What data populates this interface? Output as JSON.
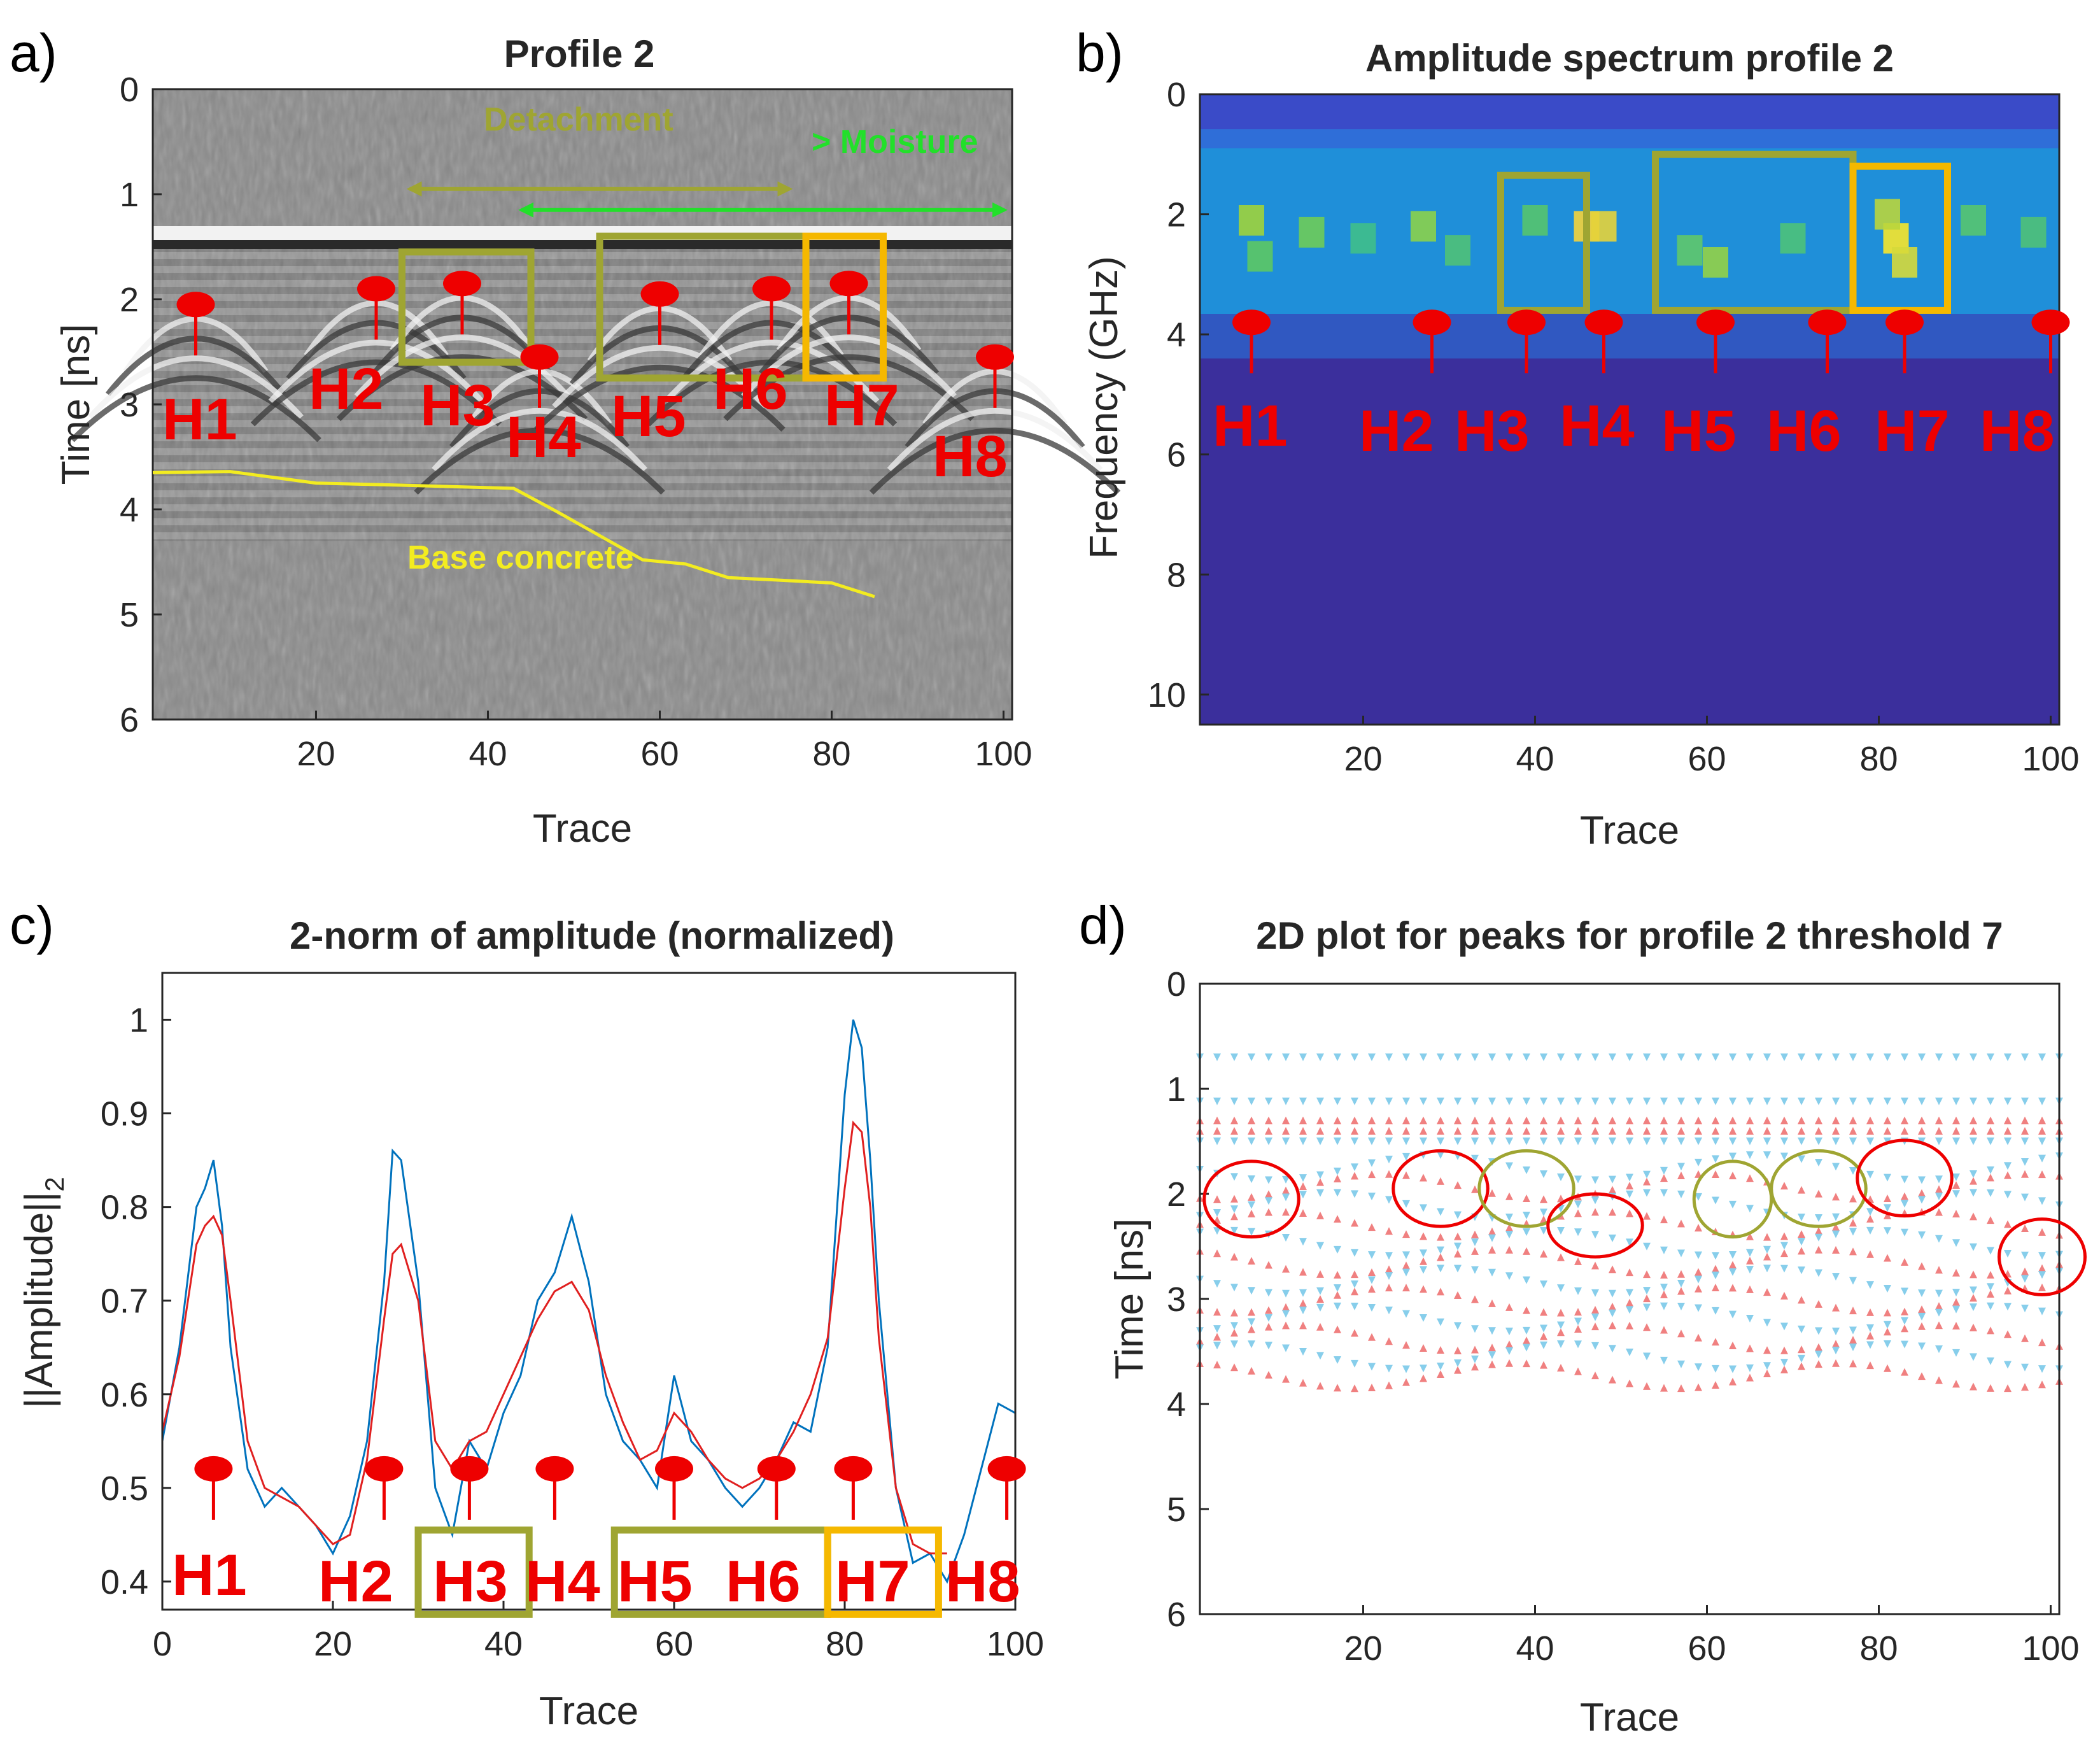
{
  "colors": {
    "marker_red": "#ee0000",
    "detachment_olive": "#9fa532",
    "moisture_orange": "#f5b800",
    "moisture_green": "#22e02a",
    "base_concrete_yellow": "#f3ec20",
    "series_blue": "#0072bd",
    "series_red": "#e02020",
    "peak_positive_blue": "#87ceeb",
    "peak_negative_red": "#f08080",
    "spectrum_background": "#3b2f9c"
  },
  "panels": {
    "a": {
      "label": "a)",
      "title": "Profile 2",
      "xlabel": "Trace",
      "ylabel": "Time [ns]"
    },
    "b": {
      "label": "b)",
      "title": "Amplitude spectrum profile 2",
      "xlabel": "Trace",
      "ylabel": "Frequency (GHz)"
    },
    "c": {
      "label": "c)",
      "title": "2-norm of amplitude (normalized)",
      "xlabel": "Trace",
      "ylabel": "||Amplitude||",
      "ylabel_subscript": "2"
    },
    "d": {
      "label": "d)",
      "title": "2D plot for peaks for profile 2 threshold 7",
      "xlabel": "Trace",
      "ylabel": "Time [ns]"
    }
  },
  "annotations": {
    "detachment": "Detachment",
    "moisture": "> Moisture",
    "base_concrete": "Base concrete"
  },
  "hyperbola_labels": [
    "H1",
    "H2",
    "H3",
    "H4",
    "H5",
    "H6",
    "H7",
    "H8"
  ],
  "chart_data": [
    {
      "panel": "a",
      "type": "heatmap",
      "title": "Profile 2",
      "xlabel": "Trace",
      "ylabel": "Time [ns]",
      "xlim": [
        1,
        101
      ],
      "ylim": [
        0,
        6
      ],
      "y_reversed": true,
      "xticks": [
        20,
        40,
        60,
        80,
        100
      ],
      "yticks": [
        0,
        1,
        2,
        3,
        4,
        5,
        6
      ],
      "colormap": "gray",
      "markers": [
        {
          "label": "H1",
          "x": 6,
          "t": 2.05
        },
        {
          "label": "H2",
          "x": 27,
          "t": 1.9
        },
        {
          "label": "H3",
          "x": 37,
          "t": 1.85
        },
        {
          "label": "H4",
          "x": 46,
          "t": 2.55
        },
        {
          "label": "H5",
          "x": 60,
          "t": 1.95
        },
        {
          "label": "H6",
          "x": 73,
          "t": 1.9
        },
        {
          "label": "H7",
          "x": 82,
          "t": 1.85
        },
        {
          "label": "H8",
          "x": 99,
          "t": 2.55
        }
      ],
      "boxes": [
        {
          "kind": "detachment",
          "x": [
            30,
            45
          ],
          "t": [
            1.55,
            2.6
          ]
        },
        {
          "kind": "detachment",
          "x": [
            53,
            77
          ],
          "t": [
            1.4,
            2.75
          ]
        },
        {
          "kind": "moisture",
          "x": [
            77,
            86
          ],
          "t": [
            1.4,
            2.75
          ]
        }
      ],
      "arrows": [
        {
          "kind": "detachment",
          "x": [
            30,
            76
          ],
          "t": 0.95
        },
        {
          "kind": "moisture",
          "x": [
            43,
            101
          ],
          "t": 1.15
        }
      ],
      "base_concrete_line": {
        "x": [
          1,
          10,
          20,
          30,
          43,
          48,
          53,
          58,
          63,
          68,
          73,
          80,
          85
        ],
        "t": [
          3.65,
          3.64,
          3.75,
          3.77,
          3.8,
          4.02,
          4.25,
          4.48,
          4.52,
          4.65,
          4.67,
          4.7,
          4.83
        ]
      }
    },
    {
      "panel": "b",
      "type": "heatmap",
      "title": "Amplitude spectrum profile 2",
      "xlabel": "Trace",
      "ylabel": "Frequency (GHz)",
      "xlim": [
        1,
        101
      ],
      "ylim": [
        0,
        10.5
      ],
      "y_reversed": true,
      "xticks": [
        20,
        40,
        60,
        80,
        100
      ],
      "yticks": [
        0,
        2,
        4,
        6,
        8,
        10
      ],
      "colormap": "parula",
      "markers": [
        {
          "label": "H1",
          "x": 7,
          "f": 3.8
        },
        {
          "label": "H2",
          "x": 28,
          "f": 3.8
        },
        {
          "label": "H3",
          "x": 39,
          "f": 3.8
        },
        {
          "label": "H4",
          "x": 48,
          "f": 3.8
        },
        {
          "label": "H5",
          "x": 61,
          "f": 3.8
        },
        {
          "label": "H6",
          "x": 74,
          "f": 3.8
        },
        {
          "label": "H7",
          "x": 83,
          "f": 3.8
        },
        {
          "label": "H8",
          "x": 100,
          "f": 3.8
        }
      ],
      "boxes": [
        {
          "kind": "detachment",
          "x": [
            36,
            46
          ],
          "f": [
            1.35,
            3.6
          ]
        },
        {
          "kind": "detachment",
          "x": [
            54,
            77
          ],
          "f": [
            1.0,
            3.6
          ]
        },
        {
          "kind": "moisture",
          "x": [
            77,
            88
          ],
          "f": [
            1.2,
            3.6
          ]
        }
      ]
    },
    {
      "panel": "c",
      "type": "line",
      "title": "2-norm of amplitude (normalized)",
      "xlabel": "Trace",
      "ylabel": "||Amplitude||2",
      "xlim": [
        0,
        100
      ],
      "ylim": [
        0.37,
        1.05
      ],
      "xticks": [
        0,
        20,
        40,
        60,
        80,
        100
      ],
      "yticks": [
        0.4,
        0.5,
        0.6,
        0.7,
        0.8,
        0.9,
        1
      ],
      "series": [
        {
          "color": "#0072bd",
          "x": [
            0,
            2,
            4,
            5,
            6,
            7,
            8,
            10,
            12,
            14,
            16,
            18,
            20,
            22,
            24,
            26,
            27,
            28,
            30,
            32,
            34,
            36,
            38,
            40,
            42,
            44,
            46,
            48,
            50,
            52,
            54,
            56,
            58,
            60,
            62,
            64,
            66,
            68,
            70,
            72,
            74,
            76,
            78,
            80,
            81,
            82,
            83,
            84,
            86,
            88,
            90,
            92,
            94,
            96,
            98,
            100
          ],
          "y": [
            0.55,
            0.65,
            0.8,
            0.82,
            0.85,
            0.78,
            0.65,
            0.52,
            0.48,
            0.5,
            0.48,
            0.46,
            0.43,
            0.47,
            0.55,
            0.72,
            0.86,
            0.85,
            0.72,
            0.5,
            0.45,
            0.55,
            0.52,
            0.58,
            0.62,
            0.7,
            0.73,
            0.79,
            0.72,
            0.6,
            0.55,
            0.53,
            0.5,
            0.62,
            0.55,
            0.53,
            0.5,
            0.48,
            0.5,
            0.53,
            0.57,
            0.56,
            0.65,
            0.92,
            1.0,
            0.97,
            0.85,
            0.7,
            0.5,
            0.42,
            0.43,
            0.4,
            0.45,
            0.52,
            0.59,
            0.58
          ]
        },
        {
          "color": "#e02020",
          "x": [
            0,
            2,
            4,
            5,
            6,
            7,
            8,
            10,
            12,
            14,
            16,
            18,
            20,
            22,
            24,
            26,
            27,
            28,
            30,
            32,
            34,
            36,
            38,
            40,
            42,
            44,
            46,
            48,
            50,
            52,
            54,
            56,
            58,
            60,
            62,
            64,
            66,
            68,
            70,
            72,
            74,
            76,
            78,
            80,
            81,
            82,
            83,
            84,
            86,
            88,
            90,
            92
          ],
          "y": [
            0.56,
            0.64,
            0.76,
            0.78,
            0.79,
            0.77,
            0.7,
            0.55,
            0.5,
            0.49,
            0.48,
            0.46,
            0.44,
            0.45,
            0.53,
            0.68,
            0.75,
            0.76,
            0.7,
            0.55,
            0.52,
            0.55,
            0.56,
            0.6,
            0.64,
            0.68,
            0.71,
            0.72,
            0.69,
            0.62,
            0.57,
            0.53,
            0.54,
            0.58,
            0.56,
            0.53,
            0.51,
            0.5,
            0.51,
            0.53,
            0.56,
            0.6,
            0.66,
            0.82,
            0.89,
            0.88,
            0.8,
            0.66,
            0.5,
            0.44,
            0.43,
            0.43
          ]
        }
      ],
      "markers": [
        {
          "label": "H1",
          "x": 6,
          "y": 0.5
        },
        {
          "label": "H2",
          "x": 26,
          "y": 0.5
        },
        {
          "label": "H3",
          "x": 36,
          "y": 0.5
        },
        {
          "label": "H4",
          "x": 46,
          "y": 0.5
        },
        {
          "label": "H5",
          "x": 60,
          "y": 0.5
        },
        {
          "label": "H6",
          "x": 72,
          "y": 0.5
        },
        {
          "label": "H7",
          "x": 81,
          "y": 0.5
        },
        {
          "label": "H8",
          "x": 99,
          "y": 0.5
        }
      ],
      "boxes": [
        {
          "kind": "detachment",
          "x": [
            30,
            43
          ],
          "y": [
            0.365,
            0.455
          ]
        },
        {
          "kind": "detachment",
          "x": [
            53,
            78
          ],
          "y": [
            0.365,
            0.455
          ]
        },
        {
          "kind": "moisture",
          "x": [
            78,
            91
          ],
          "y": [
            0.365,
            0.455
          ]
        }
      ]
    },
    {
      "panel": "d",
      "type": "scatter",
      "title": "2D plot for peaks for profile 2 threshold 7",
      "xlabel": "Trace",
      "ylabel": "Time [ns]",
      "xlim": [
        1,
        101
      ],
      "ylim": [
        0,
        6
      ],
      "y_reversed": true,
      "xticks": [
        20,
        40,
        60,
        80,
        100
      ],
      "yticks": [
        0,
        1,
        2,
        3,
        4,
        5,
        6
      ],
      "series": [
        {
          "marker": "triangle-down",
          "color": "#87ceeb"
        },
        {
          "marker": "triangle-up",
          "color": "#f08080"
        }
      ],
      "circles": [
        {
          "kind": "hyperbola",
          "x": 7,
          "t": 2.05,
          "rx": 5.5,
          "rt": 0.36
        },
        {
          "kind": "hyperbola",
          "x": 29,
          "t": 1.95,
          "rx": 5.5,
          "rt": 0.36
        },
        {
          "kind": "detachment",
          "x": 39,
          "t": 1.95,
          "rx": 5.5,
          "rt": 0.36
        },
        {
          "kind": "hyperbola",
          "x": 47,
          "t": 2.3,
          "rx": 5.5,
          "rt": 0.3
        },
        {
          "kind": "detachment",
          "x": 63,
          "t": 2.05,
          "rx": 4.5,
          "rt": 0.36
        },
        {
          "kind": "detachment",
          "x": 73,
          "t": 1.95,
          "rx": 5.5,
          "rt": 0.36
        },
        {
          "kind": "hyperbola",
          "x": 83,
          "t": 1.85,
          "rx": 5.5,
          "rt": 0.36
        },
        {
          "kind": "hyperbola",
          "x": 99,
          "t": 2.6,
          "rx": 5,
          "rt": 0.36
        }
      ]
    }
  ]
}
